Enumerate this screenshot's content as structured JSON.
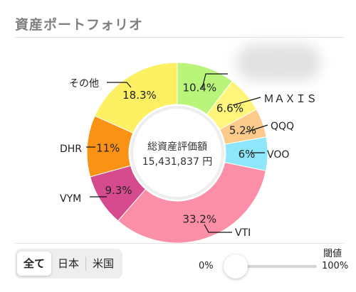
{
  "header": {
    "title": "資産ポートフォリオ"
  },
  "center": {
    "label": "総資産評価額",
    "value": "15,431,837 円"
  },
  "chart_data": {
    "type": "pie",
    "slices": [
      {
        "name": "",
        "value": 10.4,
        "label": "10.4%",
        "color": "#b8f57a"
      },
      {
        "name": "ＭＡＸＩＳ",
        "value": 6.6,
        "label": "6.6%",
        "color": "#fff57a"
      },
      {
        "name": "QQQ",
        "value": 5.2,
        "label": "5.2%",
        "color": "#fccb8c"
      },
      {
        "name": "VOO",
        "value": 6.0,
        "label": "6%",
        "color": "#8de6fa"
      },
      {
        "name": "VTI",
        "value": 33.2,
        "label": "33.2%",
        "color": "#fb8fa8"
      },
      {
        "name": "VYM",
        "value": 9.3,
        "label": "9.3%",
        "color": "#d64a8e"
      },
      {
        "name": "DHR",
        "value": 11.0,
        "label": "11%",
        "color": "#fa9216"
      },
      {
        "name": "その他",
        "value": 18.3,
        "label": "18.3%",
        "color": "#fdf063"
      }
    ]
  },
  "filters": {
    "items": [
      "全て",
      "日本",
      "米国"
    ],
    "active_index": 0
  },
  "threshold": {
    "title": "閾値",
    "min_label": "0%",
    "max_label": "100%",
    "value": 0
  }
}
